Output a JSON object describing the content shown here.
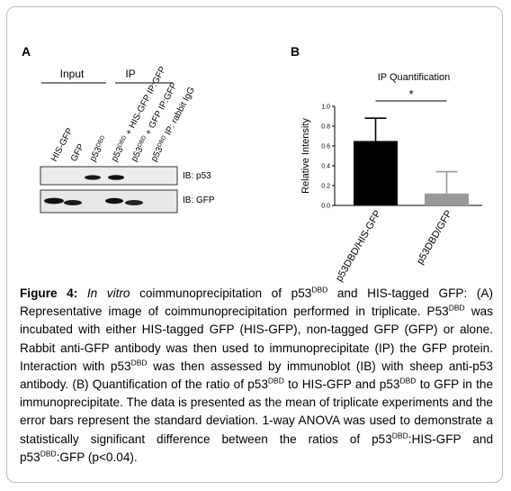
{
  "panel_a": {
    "letter": "A",
    "groups": [
      {
        "text": "Input"
      },
      {
        "text": "IP"
      }
    ],
    "lanes": [
      [
        {
          "text": "HIS-GFP"
        }
      ],
      [
        {
          "text": "GFP"
        }
      ],
      [
        {
          "text": "p53"
        },
        {
          "text": "DBD",
          "style": "sup"
        }
      ],
      [
        {
          "text": "p53"
        },
        {
          "text": "DBD",
          "style": "sup"
        },
        {
          "text": " + HIS-GFP IP:GFP"
        }
      ],
      [
        {
          "text": "p53"
        },
        {
          "text": "DBD",
          "style": "sup"
        },
        {
          "text": " + GFP IP:GFP"
        }
      ],
      [
        {
          "text": "p53"
        },
        {
          "text": "DBD",
          "style": "sup"
        },
        {
          "text": " IP: rabbit IgG"
        }
      ]
    ],
    "blots": [
      "IB: p53",
      "IB: GFP"
    ]
  },
  "panel_b": {
    "letter": "B"
  },
  "chart_data": {
    "type": "bar",
    "title": "IP Quantification",
    "y_label": "Relative Intensity",
    "categories": [
      "p53DBD/HIS-GFP",
      "p53DBD/GFP"
    ],
    "series": [
      {
        "values": [
          0.65,
          0.12
        ],
        "errors": [
          0.23,
          0.22
        ],
        "colors": [
          "#000000",
          "#999999"
        ]
      }
    ],
    "ylim": [
      0,
      1.0
    ],
    "yticks": [
      {
        "value": 0,
        "label": "0.0"
      },
      0.2,
      0.4,
      0.6,
      0.8,
      {
        "value": 1.0,
        "label": "1.0"
      }
    ],
    "significance": {
      "text": "*",
      "pair": [
        0,
        1
      ]
    }
  },
  "caption": {
    "runs": [
      {
        "text": "Figure 4: ",
        "style": "bold"
      },
      {
        "text": "In vitro",
        "style": "italic"
      },
      {
        "text": " coimmunoprecipitation of p53"
      },
      {
        "text": "DBD",
        "style": "sup"
      },
      {
        "text": " and HIS-tagged GFP: (A) Representative image of coimmunoprecipitation performed in triplicate. P53"
      },
      {
        "text": "DBD",
        "style": "sup"
      },
      {
        "text": " was incubated with either HIS-tagged GFP (HIS-GFP), non-tagged GFP (GFP) or alone. Rabbit anti-GFP antibody was then used to immunoprecipitate (IP) the GFP protein. Interaction with p53"
      },
      {
        "text": "DBD",
        "style": "sup"
      },
      {
        "text": " was then assessed by immunoblot (IB) with sheep anti-p53 antibody. (B) Quantification of the ratio of p53"
      },
      {
        "text": "DBD",
        "style": "sup"
      },
      {
        "text": " to HIS-GFP and p53"
      },
      {
        "text": "DBD",
        "style": "sup"
      },
      {
        "text": " to GFP in the immunoprecipitate. The data is presented as the mean of triplicate experiments and the error bars represent the standard deviation. 1-way ANOVA was used to demonstrate a statistically significant difference between the ratios of p53"
      },
      {
        "text": "DBD",
        "style": "sup"
      },
      {
        "text": ":HIS-GFP and p53"
      },
      {
        "text": "DBD",
        "style": "sup"
      },
      {
        "text": ":GFP (p<0.04)."
      }
    ]
  }
}
